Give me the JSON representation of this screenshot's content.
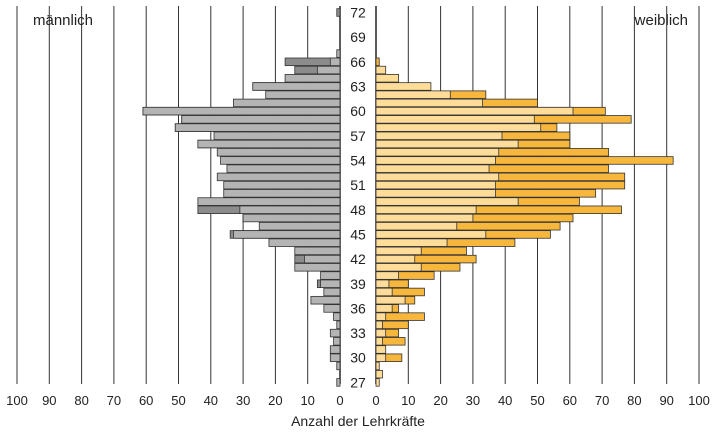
{
  "chart_data": {
    "type": "bar",
    "subtype": "population-pyramid",
    "title": "",
    "xlabel": "Anzahl der Lehrkräfte",
    "left_label": "männlich",
    "right_label": "weiblich",
    "x_ticks_left": [
      "100",
      "90",
      "80",
      "70",
      "60",
      "50",
      "40",
      "30",
      "20",
      "10",
      "0"
    ],
    "x_ticks_right": [
      "0",
      "10",
      "20",
      "30",
      "40",
      "50",
      "60",
      "70",
      "80",
      "90",
      "100"
    ],
    "xlim": [
      0,
      100
    ],
    "age_range": [
      26,
      72
    ],
    "age_tick_labels": [
      {
        "age": 72,
        "label": "72"
      },
      {
        "age": 69,
        "label": "69"
      },
      {
        "age": 66,
        "label": "66"
      },
      {
        "age": 63,
        "label": "63"
      },
      {
        "age": 60,
        "label": "60"
      },
      {
        "age": 57,
        "label": "57"
      },
      {
        "age": 54,
        "label": "54"
      },
      {
        "age": 51,
        "label": "51"
      },
      {
        "age": 48,
        "label": "48"
      },
      {
        "age": 45,
        "label": "45"
      },
      {
        "age": 42,
        "label": "42"
      },
      {
        "age": 39,
        "label": "39"
      },
      {
        "age": 36,
        "label": "36"
      },
      {
        "age": 33,
        "label": "33"
      },
      {
        "age": 30,
        "label": "30"
      },
      {
        "age": 27,
        "label": "27"
      }
    ],
    "grid": true,
    "colors": {
      "male_fill": "#b4b4b4",
      "male_prev_fill": "#8c8c8c",
      "female_fill": "#ffdd99",
      "female_prev_fill": "#f6b73c",
      "bar_stroke": "#333333",
      "grid": "#333333"
    },
    "series": [
      {
        "side": "male",
        "layer": "previous",
        "values": [
          {
            "age": 72,
            "value": 1
          },
          {
            "age": 66,
            "value": 17
          },
          {
            "age": 65,
            "value": 14
          },
          {
            "age": 63,
            "value": 27
          },
          {
            "age": 60,
            "value": 61
          },
          {
            "age": 59,
            "value": 49
          },
          {
            "age": 58,
            "value": 51
          },
          {
            "age": 56,
            "value": 44
          },
          {
            "age": 48,
            "value": 44
          },
          {
            "age": 45,
            "value": 34
          },
          {
            "age": 42,
            "value": 14
          },
          {
            "age": 39,
            "value": 7
          },
          {
            "age": 37,
            "value": 9
          }
        ]
      },
      {
        "side": "male",
        "layer": "current",
        "values": [
          {
            "age": 67,
            "value": 1
          },
          {
            "age": 66,
            "value": 3
          },
          {
            "age": 65,
            "value": 7
          },
          {
            "age": 64,
            "value": 17
          },
          {
            "age": 63,
            "value": 27
          },
          {
            "age": 62,
            "value": 23
          },
          {
            "age": 61,
            "value": 33
          },
          {
            "age": 60,
            "value": 61
          },
          {
            "age": 59,
            "value": 49
          },
          {
            "age": 58,
            "value": 51
          },
          {
            "age": 57,
            "value": 39
          },
          {
            "age": 56,
            "value": 44
          },
          {
            "age": 55,
            "value": 38
          },
          {
            "age": 54,
            "value": 37
          },
          {
            "age": 53,
            "value": 35
          },
          {
            "age": 52,
            "value": 38
          },
          {
            "age": 51,
            "value": 36
          },
          {
            "age": 50,
            "value": 36
          },
          {
            "age": 49,
            "value": 44
          },
          {
            "age": 48,
            "value": 31
          },
          {
            "age": 47,
            "value": 30
          },
          {
            "age": 46,
            "value": 25
          },
          {
            "age": 45,
            "value": 33
          },
          {
            "age": 44,
            "value": 22
          },
          {
            "age": 43,
            "value": 14
          },
          {
            "age": 42,
            "value": 11
          },
          {
            "age": 41,
            "value": 14
          },
          {
            "age": 40,
            "value": 6
          },
          {
            "age": 39,
            "value": 6
          },
          {
            "age": 38,
            "value": 5
          },
          {
            "age": 37,
            "value": 9
          },
          {
            "age": 36,
            "value": 5
          },
          {
            "age": 35,
            "value": 2
          },
          {
            "age": 34,
            "value": 1
          },
          {
            "age": 33,
            "value": 3
          },
          {
            "age": 32,
            "value": 2
          },
          {
            "age": 31,
            "value": 3
          },
          {
            "age": 30,
            "value": 3
          },
          {
            "age": 29,
            "value": 1
          },
          {
            "age": 27,
            "value": 1
          }
        ]
      },
      {
        "side": "female",
        "layer": "previous",
        "values": [
          {
            "age": 66,
            "value": 1
          },
          {
            "age": 62,
            "value": 34
          },
          {
            "age": 61,
            "value": 50
          },
          {
            "age": 60,
            "value": 71
          },
          {
            "age": 59,
            "value": 79
          },
          {
            "age": 58,
            "value": 56
          },
          {
            "age": 57,
            "value": 60
          },
          {
            "age": 56,
            "value": 60
          },
          {
            "age": 55,
            "value": 72
          },
          {
            "age": 54,
            "value": 92
          },
          {
            "age": 53,
            "value": 72
          },
          {
            "age": 52,
            "value": 77
          },
          {
            "age": 51,
            "value": 77
          },
          {
            "age": 50,
            "value": 68
          },
          {
            "age": 49,
            "value": 63
          },
          {
            "age": 48,
            "value": 76
          },
          {
            "age": 47,
            "value": 61
          },
          {
            "age": 46,
            "value": 57
          },
          {
            "age": 45,
            "value": 54
          },
          {
            "age": 44,
            "value": 43
          },
          {
            "age": 43,
            "value": 28
          },
          {
            "age": 42,
            "value": 31
          },
          {
            "age": 41,
            "value": 26
          },
          {
            "age": 40,
            "value": 18
          },
          {
            "age": 39,
            "value": 10
          },
          {
            "age": 38,
            "value": 15
          },
          {
            "age": 37,
            "value": 12
          },
          {
            "age": 36,
            "value": 7
          },
          {
            "age": 35,
            "value": 15
          },
          {
            "age": 34,
            "value": 10
          },
          {
            "age": 33,
            "value": 7
          },
          {
            "age": 32,
            "value": 9
          },
          {
            "age": 30,
            "value": 8
          }
        ]
      },
      {
        "side": "female",
        "layer": "current",
        "values": [
          {
            "age": 65,
            "value": 3
          },
          {
            "age": 64,
            "value": 7
          },
          {
            "age": 63,
            "value": 17
          },
          {
            "age": 62,
            "value": 23
          },
          {
            "age": 61,
            "value": 33
          },
          {
            "age": 60,
            "value": 61
          },
          {
            "age": 59,
            "value": 49
          },
          {
            "age": 58,
            "value": 51
          },
          {
            "age": 57,
            "value": 39
          },
          {
            "age": 56,
            "value": 44
          },
          {
            "age": 55,
            "value": 38
          },
          {
            "age": 54,
            "value": 37
          },
          {
            "age": 53,
            "value": 35
          },
          {
            "age": 52,
            "value": 38
          },
          {
            "age": 51,
            "value": 37
          },
          {
            "age": 50,
            "value": 37
          },
          {
            "age": 49,
            "value": 44
          },
          {
            "age": 48,
            "value": 31
          },
          {
            "age": 47,
            "value": 30
          },
          {
            "age": 46,
            "value": 25
          },
          {
            "age": 45,
            "value": 34
          },
          {
            "age": 44,
            "value": 22
          },
          {
            "age": 43,
            "value": 14
          },
          {
            "age": 42,
            "value": 12
          },
          {
            "age": 41,
            "value": 14
          },
          {
            "age": 40,
            "value": 7
          },
          {
            "age": 39,
            "value": 4
          },
          {
            "age": 38,
            "value": 5
          },
          {
            "age": 37,
            "value": 9
          },
          {
            "age": 36,
            "value": 5
          },
          {
            "age": 35,
            "value": 3
          },
          {
            "age": 34,
            "value": 2
          },
          {
            "age": 33,
            "value": 3
          },
          {
            "age": 32,
            "value": 2
          },
          {
            "age": 31,
            "value": 3
          },
          {
            "age": 30,
            "value": 3
          },
          {
            "age": 29,
            "value": 1
          },
          {
            "age": 28,
            "value": 2
          },
          {
            "age": 27,
            "value": 1
          }
        ]
      }
    ]
  }
}
